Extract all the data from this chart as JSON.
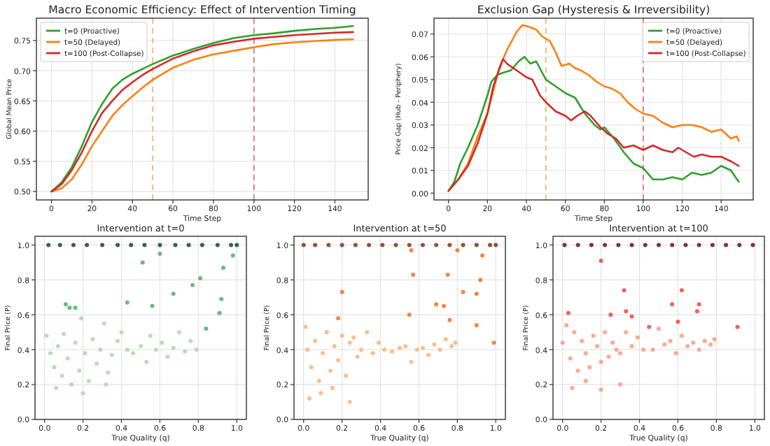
{
  "chart_data": [
    {
      "type": "line",
      "title": "Macro Economic Efficiency: Effect of Intervention Timing",
      "xlabel": "Time Step",
      "ylabel": "Global Mean Price",
      "xlim": [
        -7.45,
        156.45
      ],
      "ylim": [
        0.486,
        0.787
      ],
      "xticks": [
        0,
        20,
        40,
        60,
        80,
        100,
        120,
        140
      ],
      "yticks": [
        {
          "value": 0.5,
          "label": "0.50"
        },
        {
          "value": 0.55,
          "label": "0.55"
        },
        {
          "value": 0.6,
          "label": "0.60"
        },
        {
          "value": 0.65,
          "label": "0.65"
        },
        {
          "value": 0.7,
          "label": "0.70"
        },
        {
          "value": 0.75,
          "label": "0.75"
        }
      ],
      "grid": true,
      "legend": "top left",
      "line_style": "solid",
      "marker": "none",
      "ref_lines": [
        {
          "axis": "x",
          "value": 50,
          "color": "#ff7f0e",
          "line_style": "dashed"
        },
        {
          "axis": "x",
          "value": 100,
          "color": "#d62728",
          "line_style": "dashed"
        }
      ],
      "series": [
        {
          "name": "t=0 (Proactive)",
          "color": "#2ca02c",
          "x": [
            0,
            5,
            10,
            15,
            20,
            25,
            30,
            35,
            40,
            45,
            50,
            60,
            70,
            80,
            90,
            100,
            110,
            120,
            130,
            140,
            149
          ],
          "values": [
            0.5,
            0.515,
            0.54,
            0.575,
            0.615,
            0.645,
            0.67,
            0.685,
            0.695,
            0.703,
            0.711,
            0.725,
            0.736,
            0.746,
            0.754,
            0.759,
            0.762,
            0.766,
            0.769,
            0.771,
            0.774
          ]
        },
        {
          "name": "t=50 (Delayed)",
          "color": "#ff7f0e",
          "x": [
            0,
            5,
            10,
            15,
            20,
            25,
            30,
            35,
            40,
            45,
            50,
            60,
            70,
            80,
            90,
            100,
            110,
            120,
            130,
            140,
            149
          ],
          "values": [
            0.5,
            0.505,
            0.52,
            0.545,
            0.575,
            0.6,
            0.625,
            0.643,
            0.658,
            0.672,
            0.685,
            0.705,
            0.718,
            0.727,
            0.733,
            0.739,
            0.744,
            0.747,
            0.749,
            0.751,
            0.752
          ]
        },
        {
          "name": "t=100 (Post-Collapse)",
          "color": "#d62728",
          "x": [
            0,
            5,
            10,
            15,
            20,
            25,
            30,
            35,
            40,
            45,
            50,
            60,
            70,
            80,
            90,
            100,
            110,
            120,
            130,
            140,
            149
          ],
          "values": [
            0.5,
            0.512,
            0.535,
            0.565,
            0.6,
            0.63,
            0.65,
            0.668,
            0.681,
            0.693,
            0.703,
            0.72,
            0.732,
            0.742,
            0.748,
            0.753,
            0.756,
            0.759,
            0.761,
            0.763,
            0.764
          ]
        }
      ]
    },
    {
      "type": "line",
      "title": "Exclusion Gap (Hysteresis & Irreversibility)",
      "xlabel": "Time Step",
      "ylabel": "Price Gap (Hub - Periphery)",
      "xlim": [
        -7.45,
        156.45
      ],
      "ylim": [
        -0.003,
        0.077
      ],
      "xticks": [
        0,
        20,
        40,
        60,
        80,
        100,
        120,
        140
      ],
      "yticks": [
        {
          "value": 0,
          "label": "0.00"
        },
        {
          "value": 0.01,
          "label": "0.01"
        },
        {
          "value": 0.02,
          "label": "0.02"
        },
        {
          "value": 0.03,
          "label": "0.03"
        },
        {
          "value": 0.04,
          "label": "0.04"
        },
        {
          "value": 0.05,
          "label": "0.05"
        },
        {
          "value": 0.06,
          "label": "0.06"
        },
        {
          "value": 0.07,
          "label": "0.07"
        }
      ],
      "grid": true,
      "legend": "top right",
      "line_style": "solid",
      "marker": "none",
      "ref_lines": [
        {
          "axis": "x",
          "value": 50,
          "color": "#ff7f0e",
          "line_style": "dashed"
        },
        {
          "axis": "x",
          "value": 100,
          "color": "#d62728",
          "line_style": "dashed"
        }
      ],
      "series": [
        {
          "name": "t=0 (Proactive)",
          "color": "#2ca02c",
          "x": [
            0,
            3,
            6,
            10,
            15,
            20,
            22,
            25,
            28,
            32,
            36,
            39,
            42,
            45,
            50,
            55,
            60,
            65,
            70,
            75,
            78,
            80,
            85,
            90,
            95,
            100,
            105,
            110,
            115,
            120,
            125,
            130,
            135,
            140,
            145,
            149
          ],
          "values": [
            0.001,
            0.005,
            0.013,
            0.02,
            0.03,
            0.043,
            0.049,
            0.052,
            0.053,
            0.054,
            0.058,
            0.06,
            0.057,
            0.058,
            0.05,
            0.047,
            0.044,
            0.042,
            0.035,
            0.03,
            0.028,
            0.029,
            0.024,
            0.018,
            0.013,
            0.011,
            0.006,
            0.006,
            0.007,
            0.006,
            0.009,
            0.008,
            0.009,
            0.012,
            0.01,
            0.005
          ]
        },
        {
          "name": "t=50 (Delayed)",
          "color": "#ff7f0e",
          "x": [
            0,
            5,
            10,
            15,
            20,
            23,
            26,
            30,
            35,
            38,
            42,
            45,
            48,
            52,
            55,
            58,
            62,
            65,
            68,
            72,
            76,
            80,
            84,
            88,
            92,
            96,
            100,
            105,
            110,
            115,
            120,
            125,
            130,
            135,
            140,
            145,
            148,
            149
          ],
          "values": [
            0.001,
            0.006,
            0.013,
            0.025,
            0.035,
            0.045,
            0.055,
            0.063,
            0.071,
            0.074,
            0.073,
            0.072,
            0.069,
            0.067,
            0.062,
            0.056,
            0.057,
            0.055,
            0.054,
            0.052,
            0.049,
            0.047,
            0.046,
            0.044,
            0.04,
            0.037,
            0.035,
            0.034,
            0.031,
            0.029,
            0.03,
            0.03,
            0.029,
            0.027,
            0.028,
            0.024,
            0.025,
            0.023
          ]
        },
        {
          "name": "t=100 (Post-Collapse)",
          "color": "#d62728",
          "x": [
            0,
            5,
            10,
            15,
            20,
            23,
            25,
            28,
            30,
            35,
            40,
            43,
            47,
            50,
            55,
            60,
            63,
            66,
            70,
            73,
            78,
            82,
            86,
            90,
            95,
            100,
            105,
            110,
            115,
            118,
            122,
            126,
            130,
            135,
            140,
            145,
            149
          ],
          "values": [
            0.001,
            0.006,
            0.012,
            0.022,
            0.035,
            0.047,
            0.052,
            0.059,
            0.057,
            0.054,
            0.051,
            0.05,
            0.043,
            0.04,
            0.036,
            0.034,
            0.032,
            0.034,
            0.036,
            0.034,
            0.029,
            0.026,
            0.024,
            0.02,
            0.021,
            0.019,
            0.021,
            0.019,
            0.018,
            0.02,
            0.018,
            0.016,
            0.017,
            0.016,
            0.016,
            0.014,
            0.012
          ]
        }
      ]
    },
    {
      "type": "scatter",
      "title": "Intervention at t=0",
      "xlabel": "True Quality (q)",
      "ylabel": "Final Price (P)",
      "xlim": [
        -0.05,
        1.05
      ],
      "ylim": [
        0,
        1.05
      ],
      "xticks": [
        {
          "value": 0,
          "label": "0.0"
        },
        {
          "value": 0.2,
          "label": "0.2"
        },
        {
          "value": 0.4,
          "label": "0.4"
        },
        {
          "value": 0.6,
          "label": "0.6"
        },
        {
          "value": 0.8,
          "label": "0.8"
        },
        {
          "value": 1,
          "label": "1.0"
        }
      ],
      "yticks": [
        {
          "value": 0,
          "label": "0.0"
        },
        {
          "value": 0.2,
          "label": "0.2"
        },
        {
          "value": 0.4,
          "label": "0.4"
        },
        {
          "value": 0.6,
          "label": "0.6"
        },
        {
          "value": 0.8,
          "label": "0.8"
        },
        {
          "value": 1,
          "label": "1.0"
        }
      ],
      "grid": true,
      "legend": false,
      "marker": "circle",
      "series": [
        {
          "color": "#a1d99b",
          "x": [
            0.01,
            0.03,
            0.05,
            0.07,
            0.09,
            0.1,
            0.12,
            0.14,
            0.16,
            0.18,
            0.19,
            0.21,
            0.23,
            0.25,
            0.27,
            0.29,
            0.31,
            0.33,
            0.35,
            0.38,
            0.4,
            0.43,
            0.46,
            0.5,
            0.53,
            0.55,
            0.58,
            0.61,
            0.64,
            0.67,
            0.7,
            0.73,
            0.76,
            0.79,
            0.06,
            0.2,
            0.32
          ],
          "values": [
            0.48,
            0.38,
            0.3,
            0.42,
            0.25,
            0.49,
            0.35,
            0.2,
            0.44,
            0.28,
            0.58,
            0.38,
            0.22,
            0.46,
            0.32,
            0.4,
            0.55,
            0.27,
            0.37,
            0.45,
            0.5,
            0.4,
            0.38,
            0.42,
            0.33,
            0.48,
            0.4,
            0.44,
            0.36,
            0.41,
            0.5,
            0.39,
            0.45,
            0.4,
            0.18,
            0.15,
            0.2
          ]
        },
        {
          "color": "#41ab5d",
          "x": [
            0.11,
            0.13,
            0.16,
            0.43,
            0.51,
            0.6,
            0.56,
            0.67,
            0.77,
            0.81,
            0.84,
            0.92,
            0.93,
            0.98,
            0.91
          ],
          "values": [
            0.66,
            0.64,
            0.64,
            0.67,
            0.9,
            0.95,
            0.65,
            0.72,
            0.77,
            0.81,
            0.52,
            0.69,
            0.87,
            0.94,
            0.61
          ]
        },
        {
          "color": "#00441b",
          "x": [
            0.02,
            0.08,
            0.15,
            0.22,
            0.3,
            0.38,
            0.45,
            0.52,
            0.6,
            0.68,
            0.75,
            0.82,
            0.9,
            0.97,
            1.0
          ],
          "values": [
            1,
            1,
            1,
            1,
            1,
            1,
            1,
            1,
            1,
            1,
            1,
            1,
            1,
            1,
            1
          ]
        }
      ]
    },
    {
      "type": "scatter",
      "title": "Intervention at t=50",
      "xlabel": "True Quality (q)",
      "ylabel": "Final Price (P)",
      "xlim": [
        -0.05,
        1.05
      ],
      "ylim": [
        0,
        1.05
      ],
      "xticks": [
        {
          "value": 0,
          "label": "0.0"
        },
        {
          "value": 0.2,
          "label": "0.2"
        },
        {
          "value": 0.4,
          "label": "0.4"
        },
        {
          "value": 0.6,
          "label": "0.6"
        },
        {
          "value": 0.8,
          "label": "0.8"
        },
        {
          "value": 1,
          "label": "1.0"
        }
      ],
      "yticks": [
        {
          "value": 0,
          "label": "0.0"
        },
        {
          "value": 0.2,
          "label": "0.2"
        },
        {
          "value": 0.4,
          "label": "0.4"
        },
        {
          "value": 0.6,
          "label": "0.6"
        },
        {
          "value": 0.8,
          "label": "0.8"
        },
        {
          "value": 1,
          "label": "1.0"
        }
      ],
      "grid": true,
      "legend": false,
      "marker": "circle",
      "series": [
        {
          "color": "#fdae6b",
          "x": [
            0.01,
            0.02,
            0.04,
            0.06,
            0.08,
            0.1,
            0.12,
            0.14,
            0.16,
            0.18,
            0.2,
            0.22,
            0.24,
            0.26,
            0.28,
            0.3,
            0.33,
            0.36,
            0.39,
            0.42,
            0.46,
            0.5,
            0.53,
            0.56,
            0.59,
            0.62,
            0.65,
            0.68,
            0.71,
            0.74,
            0.77,
            0.79,
            0.03,
            0.09,
            0.15,
            0.24
          ],
          "values": [
            0.53,
            0.4,
            0.3,
            0.45,
            0.22,
            0.38,
            0.5,
            0.28,
            0.42,
            0.34,
            0.48,
            0.25,
            0.44,
            0.47,
            0.36,
            0.4,
            0.5,
            0.38,
            0.44,
            0.4,
            0.39,
            0.41,
            0.42,
            0.33,
            0.4,
            0.41,
            0.37,
            0.43,
            0.4,
            0.46,
            0.42,
            0.44,
            0.12,
            0.15,
            0.18,
            0.1
          ]
        },
        {
          "color": "#f16913",
          "x": [
            0.18,
            0.2,
            0.55,
            0.57,
            0.69,
            0.73,
            0.75,
            0.76,
            0.83,
            0.9,
            0.92,
            0.93,
            0.99,
            0.9,
            0.56,
            0.8
          ],
          "values": [
            0.58,
            0.73,
            0.6,
            0.83,
            0.66,
            0.65,
            0.83,
            0.57,
            0.73,
            0.72,
            0.8,
            0.94,
            0.44,
            0.54,
            0.97,
            0.97
          ]
        },
        {
          "color": "#7f2704",
          "x": [
            0.0,
            0.06,
            0.13,
            0.2,
            0.27,
            0.34,
            0.41,
            0.48,
            0.55,
            0.62,
            0.69,
            0.76,
            0.83,
            0.9,
            0.97,
            1.0
          ],
          "values": [
            1,
            1,
            1,
            1,
            1,
            1,
            1,
            1,
            1,
            1,
            1,
            1,
            1,
            1,
            1,
            1
          ]
        }
      ]
    },
    {
      "type": "scatter",
      "title": "Intervention at t=100",
      "xlabel": "True Quality (q)",
      "ylabel": "Final Price (P)",
      "xlim": [
        -0.05,
        1.05
      ],
      "ylim": [
        0,
        1.05
      ],
      "xticks": [
        {
          "value": 0,
          "label": "0.0"
        },
        {
          "value": 0.2,
          "label": "0.2"
        },
        {
          "value": 0.4,
          "label": "0.4"
        },
        {
          "value": 0.6,
          "label": "0.6"
        },
        {
          "value": 0.8,
          "label": "0.8"
        },
        {
          "value": 1,
          "label": "1.0"
        }
      ],
      "yticks": [
        {
          "value": 0,
          "label": "0.0"
        },
        {
          "value": 0.2,
          "label": "0.2"
        },
        {
          "value": 0.4,
          "label": "0.4"
        },
        {
          "value": 0.6,
          "label": "0.6"
        },
        {
          "value": 0.8,
          "label": "0.8"
        },
        {
          "value": 1,
          "label": "1.0"
        }
      ],
      "grid": true,
      "legend": false,
      "marker": "circle",
      "series": [
        {
          "color": "#fc9272",
          "x": [
            0.0,
            0.02,
            0.04,
            0.06,
            0.08,
            0.1,
            0.12,
            0.14,
            0.16,
            0.18,
            0.2,
            0.22,
            0.24,
            0.26,
            0.28,
            0.3,
            0.33,
            0.36,
            0.39,
            0.42,
            0.47,
            0.5,
            0.53,
            0.56,
            0.59,
            0.62,
            0.65,
            0.68,
            0.71,
            0.74,
            0.77,
            0.79,
            0.05,
            0.12,
            0.2,
            0.3
          ],
          "values": [
            0.44,
            0.54,
            0.35,
            0.5,
            0.28,
            0.45,
            0.38,
            0.3,
            0.48,
            0.42,
            0.33,
            0.5,
            0.36,
            0.44,
            0.4,
            0.38,
            0.5,
            0.42,
            0.47,
            0.4,
            0.4,
            0.52,
            0.43,
            0.45,
            0.38,
            0.48,
            0.42,
            0.44,
            0.4,
            0.45,
            0.43,
            0.46,
            0.18,
            0.22,
            0.17,
            0.2
          ]
        },
        {
          "color": "#ef3b2c",
          "x": [
            0.2,
            0.32,
            0.03,
            0.25,
            0.33,
            0.36,
            0.57,
            0.62,
            0.6,
            0.7,
            0.71,
            0.91,
            0.45
          ],
          "values": [
            0.91,
            0.74,
            0.61,
            0.6,
            0.62,
            0.59,
            0.66,
            0.74,
            0.56,
            0.62,
            0.66,
            0.53,
            0.53
          ]
        },
        {
          "color": "#67000d",
          "x": [
            0.01,
            0.08,
            0.15,
            0.22,
            0.29,
            0.36,
            0.43,
            0.5,
            0.57,
            0.64,
            0.71,
            0.78,
            0.85,
            0.92,
            0.99
          ],
          "values": [
            1,
            1,
            1,
            1,
            1,
            1,
            1,
            1,
            1,
            1,
            1,
            1,
            1,
            1,
            1
          ]
        }
      ]
    }
  ]
}
